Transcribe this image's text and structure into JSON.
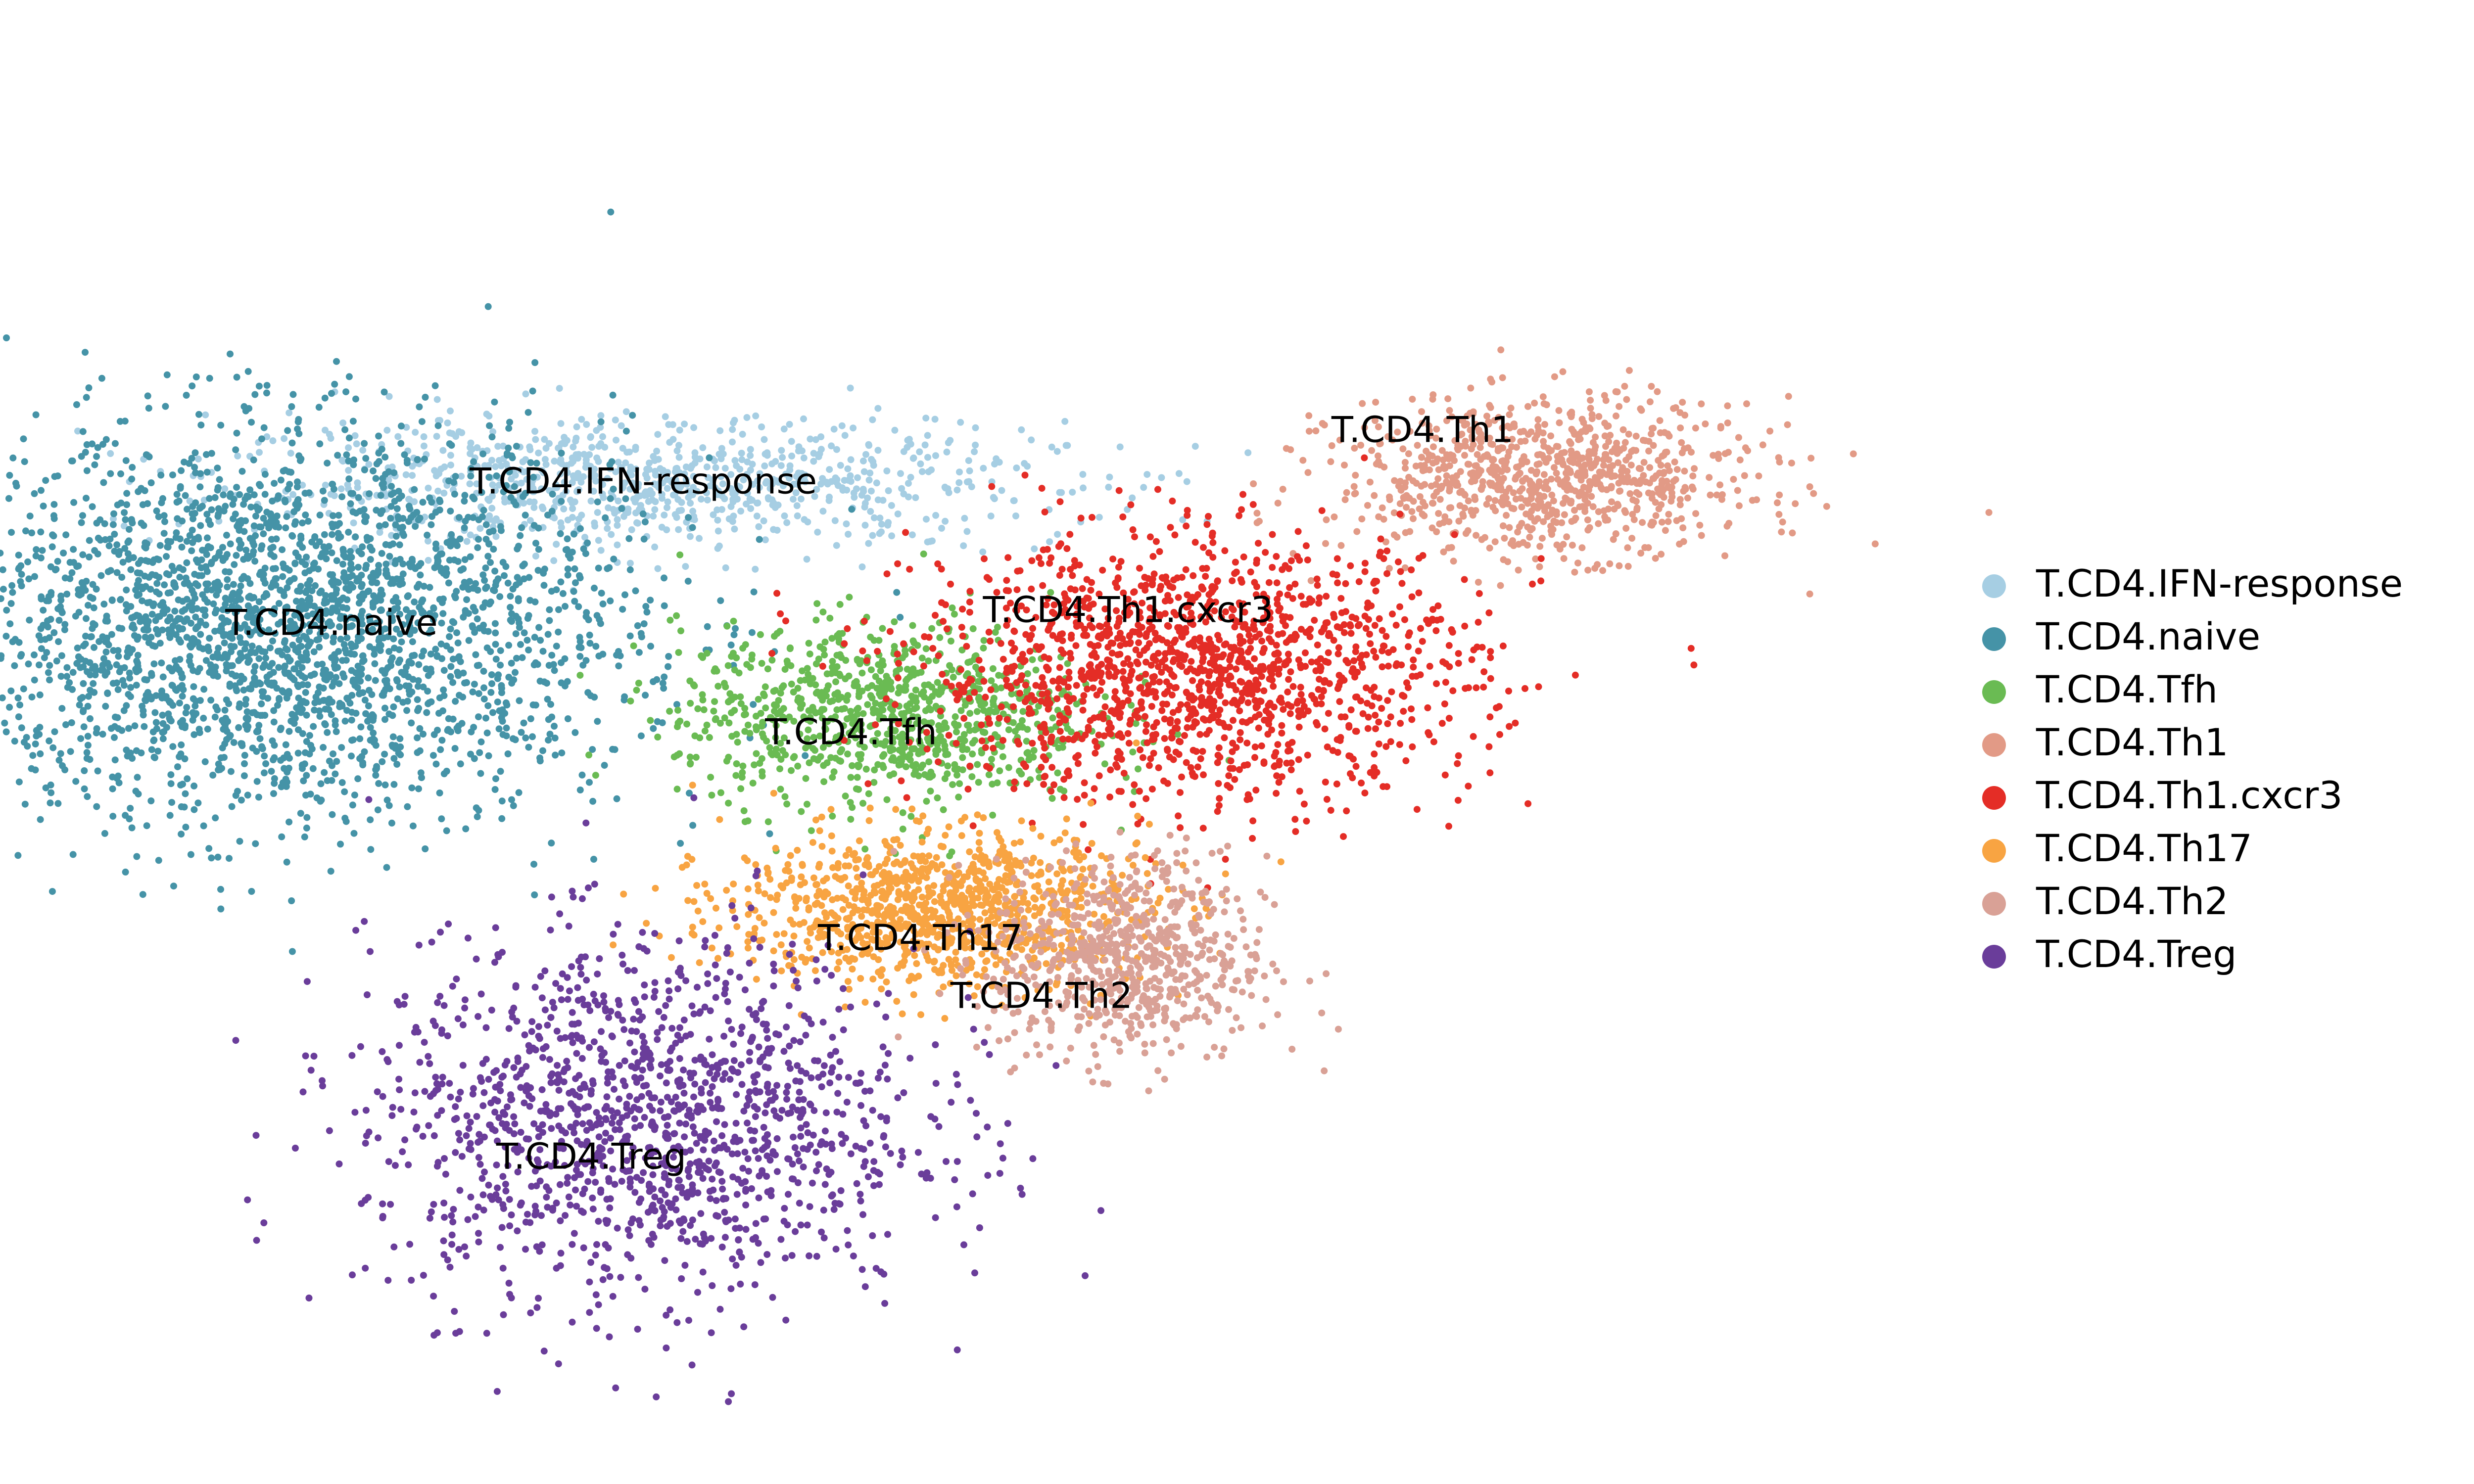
{
  "chart_data": {
    "type": "scatter",
    "title": "",
    "xlabel": "",
    "ylabel": "",
    "axes_visible": false,
    "legend_placement": "right",
    "series": [
      {
        "name": "T.CD4.IFN-response",
        "color": "#a6cee3",
        "center": [
          0.3,
          0.44
        ],
        "spread": [
          0.12,
          0.05
        ],
        "points": 900
      },
      {
        "name": "T.CD4.naive",
        "color": "#4593a7",
        "center": [
          0.09,
          0.22
        ],
        "spread": [
          0.1,
          0.15
        ],
        "points": 2800
      },
      {
        "name": "T.CD4.Tfh",
        "color": "#6abb53",
        "center": [
          0.44,
          0.08
        ],
        "spread": [
          0.06,
          0.07
        ],
        "points": 900
      },
      {
        "name": "T.CD4.Th1",
        "color": "#e29a86",
        "center": [
          0.82,
          0.45
        ],
        "spread": [
          0.06,
          0.06
        ],
        "points": 900
      },
      {
        "name": "T.CD4.Th1.cxcr3",
        "color": "#e42d26",
        "center": [
          0.62,
          0.15
        ],
        "spread": [
          0.08,
          0.1
        ],
        "points": 1500
      },
      {
        "name": "T.CD4.Th17",
        "color": "#f8a442",
        "center": [
          0.47,
          -0.22
        ],
        "spread": [
          0.06,
          0.06
        ],
        "points": 1100
      },
      {
        "name": "T.CD4.Th2",
        "color": "#d9a196",
        "center": [
          0.58,
          -0.3
        ],
        "spread": [
          0.04,
          0.08
        ],
        "points": 700
      },
      {
        "name": "T.CD4.Treg",
        "color": "#6a3d9a",
        "center": [
          0.3,
          -0.55
        ],
        "spread": [
          0.08,
          0.14
        ],
        "points": 1400
      }
    ],
    "cluster_labels": [
      {
        "text": "T.CD4.IFN-response",
        "x": 0.3,
        "y": 0.44
      },
      {
        "text": "T.CD4.naive",
        "x": 0.12,
        "y": 0.22
      },
      {
        "text": "T.CD4.Tfh",
        "x": 0.42,
        "y": 0.05
      },
      {
        "text": "T.CD4.Th1",
        "x": 0.75,
        "y": 0.52
      },
      {
        "text": "T.CD4.Th1.cxcr3",
        "x": 0.58,
        "y": 0.24
      },
      {
        "text": "T.CD4.Th17",
        "x": 0.46,
        "y": -0.27
      },
      {
        "text": "T.CD4.Th2",
        "x": 0.53,
        "y": -0.36
      },
      {
        "text": "T.CD4.Treg",
        "x": 0.27,
        "y": -0.61
      }
    ],
    "xlim": [
      0,
      1
    ],
    "ylim": [
      -1,
      1
    ]
  }
}
